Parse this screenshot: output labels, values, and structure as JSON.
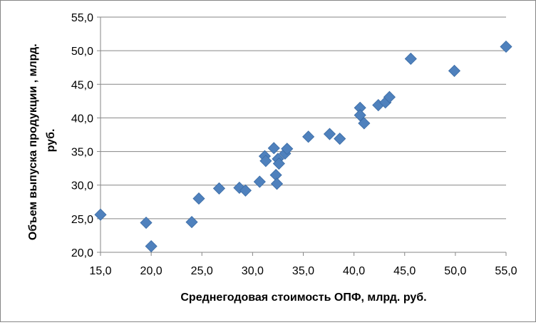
{
  "chart_data": {
    "type": "scatter",
    "title": "",
    "xlabel": "Среднегодовая стоимость ОПФ, млрд. руб.",
    "ylabel_lines": [
      "Объем выпуска продукции , млрд.",
      "руб."
    ],
    "xlim": [
      15,
      55
    ],
    "ylim": [
      20,
      55
    ],
    "x_ticks": [
      "15,0",
      "20,0",
      "25,0",
      "30,0",
      "35,0",
      "40,0",
      "45,0",
      "50,0",
      "55,0"
    ],
    "y_ticks": [
      "20,0",
      "25,0",
      "30,0",
      "35,0",
      "40,0",
      "45,0",
      "50,0",
      "55,0"
    ],
    "grid": "horizontal",
    "legend": "none",
    "marker": "diamond",
    "marker_color": "#4F81BD",
    "points": [
      {
        "x": 15.0,
        "y": 25.6
      },
      {
        "x": 19.5,
        "y": 24.4
      },
      {
        "x": 20.0,
        "y": 20.9
      },
      {
        "x": 24.0,
        "y": 24.5
      },
      {
        "x": 24.7,
        "y": 28.0
      },
      {
        "x": 26.7,
        "y": 29.5
      },
      {
        "x": 28.7,
        "y": 29.6
      },
      {
        "x": 29.3,
        "y": 29.2
      },
      {
        "x": 30.7,
        "y": 30.5
      },
      {
        "x": 31.2,
        "y": 34.3
      },
      {
        "x": 31.3,
        "y": 33.6
      },
      {
        "x": 32.1,
        "y": 35.5
      },
      {
        "x": 32.3,
        "y": 31.5
      },
      {
        "x": 32.4,
        "y": 30.2
      },
      {
        "x": 32.5,
        "y": 33.9
      },
      {
        "x": 32.6,
        "y": 33.2
      },
      {
        "x": 33.2,
        "y": 34.7
      },
      {
        "x": 33.4,
        "y": 35.4
      },
      {
        "x": 35.5,
        "y": 37.2
      },
      {
        "x": 37.6,
        "y": 37.6
      },
      {
        "x": 38.6,
        "y": 36.9
      },
      {
        "x": 40.6,
        "y": 41.5
      },
      {
        "x": 40.6,
        "y": 40.4
      },
      {
        "x": 41.0,
        "y": 39.2
      },
      {
        "x": 42.4,
        "y": 41.9
      },
      {
        "x": 43.1,
        "y": 42.3
      },
      {
        "x": 43.5,
        "y": 43.1
      },
      {
        "x": 45.6,
        "y": 48.8
      },
      {
        "x": 49.9,
        "y": 47.0
      },
      {
        "x": 55.0,
        "y": 50.6
      }
    ]
  }
}
